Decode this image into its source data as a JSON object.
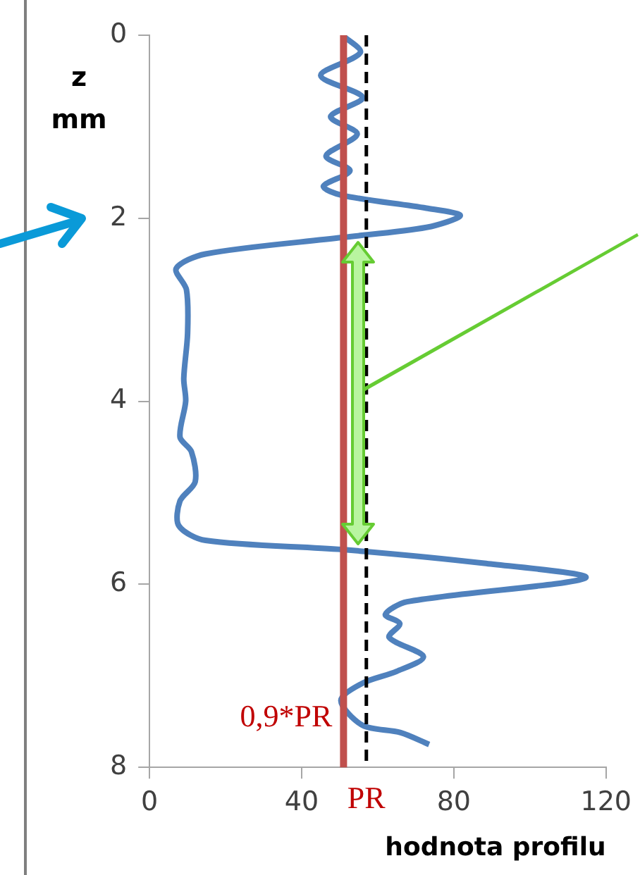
{
  "chart_data": {
    "type": "line",
    "xlabel": "hodnota profilu",
    "ylabel": "z mm",
    "xlim": [
      0,
      120
    ],
    "xticks": [
      0,
      40,
      80,
      120
    ],
    "ylim": [
      8,
      0
    ],
    "yticks": [
      0,
      2,
      4,
      6,
      8
    ],
    "grid": false,
    "legend": false,
    "marker": "none",
    "line_style": "solid",
    "series": [
      {
        "color": "#4f81bd",
        "x": [
          50.7,
          55.4,
          45,
          56,
          47.6,
          54.6,
          46.4,
          52.7,
          45.7,
          50.7,
          72.8,
          81.7,
          72.8,
          50.7,
          14.7,
          7,
          9.7,
          10,
          9,
          9.5,
          8,
          11,
          12,
          8,
          7.7,
          14.7,
          50.7,
          88,
          114.6,
          67.7,
          62,
          65.8,
          63,
          72,
          65,
          56,
          50.3,
          56,
          66,
          73.5
        ],
        "values": [
          0,
          0.19,
          0.44,
          0.68,
          0.89,
          1.08,
          1.32,
          1.48,
          1.65,
          1.75,
          1.89,
          1.97,
          2.1,
          2.21,
          2.39,
          2.55,
          2.78,
          3.26,
          3.75,
          4.0,
          4.39,
          4.55,
          4.88,
          5.09,
          5.36,
          5.52,
          5.62,
          5.77,
          5.93,
          6.19,
          6.33,
          6.43,
          6.58,
          6.79,
          6.95,
          7.08,
          7.27,
          7.54,
          7.62,
          7.75
        ]
      }
    ],
    "ref_lines": [
      {
        "axis": "x",
        "value": 51,
        "label": "0,9*PR",
        "color": "#c0504d",
        "line_style": "solid"
      },
      {
        "axis": "x",
        "value": 57,
        "label": "PR",
        "color": "#000000",
        "line_style": "dashed"
      }
    ]
  }
}
